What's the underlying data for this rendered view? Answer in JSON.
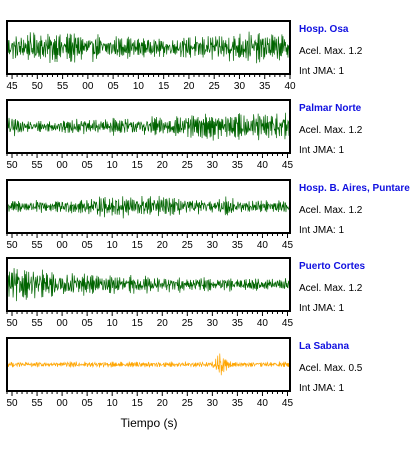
{
  "chart_data": {
    "type": "line",
    "xlabel": "Tiempo (s)",
    "panels": [
      {
        "name": "Hosp. Osa",
        "acel_label": "Acel. Max. 1.2",
        "int_label": "Int JMA: 1",
        "color": "#006400",
        "amplitude": 0.85,
        "envelope": "uniform",
        "tick_labels": [
          "45",
          "50",
          "55",
          "00",
          "05",
          "10",
          "15",
          "20",
          "25",
          "30",
          "35",
          "40"
        ],
        "x_start_s": -1.0,
        "x_end_s": 55.0
      },
      {
        "name": "Palmar Norte",
        "acel_label": "Acel. Max. 1.2",
        "int_label": "Int JMA: 1",
        "color": "#006400",
        "amplitude": 0.9,
        "envelope": "rising",
        "tick_labels": [
          "50",
          "55",
          "00",
          "05",
          "10",
          "15",
          "20",
          "25",
          "30",
          "35",
          "40",
          "45"
        ],
        "x_start_s": -1.0,
        "x_end_s": 55.5
      },
      {
        "name": "Hosp. B. Aires, Puntare",
        "acel_label": "Acel. Max. 1.2",
        "int_label": "Int JMA: 1",
        "color": "#006400",
        "amplitude": 0.8,
        "envelope": "mid",
        "tick_labels": [
          "50",
          "55",
          "00",
          "05",
          "10",
          "15",
          "20",
          "25",
          "30",
          "35",
          "40",
          "45"
        ],
        "x_start_s": -1.0,
        "x_end_s": 55.5
      },
      {
        "name": "Puerto Cortes",
        "acel_label": "Acel. Max. 1.2",
        "int_label": "Int JMA: 1",
        "color": "#006400",
        "amplitude": 0.9,
        "envelope": "decay",
        "tick_labels": [
          "50",
          "55",
          "00",
          "05",
          "10",
          "15",
          "20",
          "25",
          "30",
          "35",
          "40",
          "45"
        ],
        "x_start_s": -1.0,
        "x_end_s": 55.5
      },
      {
        "name": "La Sabana",
        "acel_label": "Acel. Max. 0.5",
        "int_label": "Int JMA: 1",
        "color": "#ffa500",
        "amplitude": 0.35,
        "envelope": "spike",
        "tick_labels": [
          "50",
          "55",
          "00",
          "05",
          "10",
          "15",
          "20",
          "25",
          "30",
          "35",
          "40",
          "45"
        ],
        "x_start_s": -1.0,
        "x_end_s": 55.5
      }
    ]
  }
}
